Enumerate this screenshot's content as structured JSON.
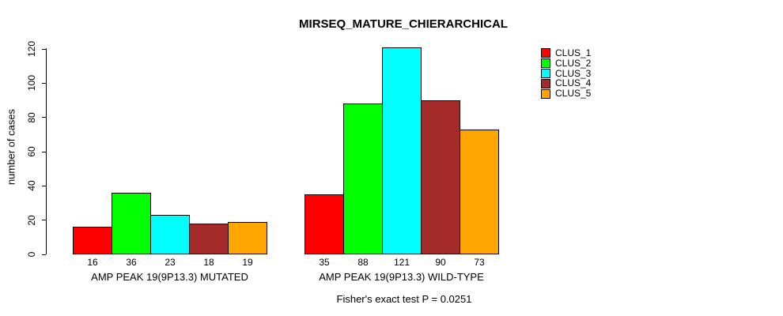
{
  "title": "MIRSEQ_MATURE_CHIERARCHICAL",
  "footer": "Fisher's exact test P = 0.0251",
  "y_axis": {
    "label": "number of cases",
    "ticks": [
      0,
      20,
      40,
      60,
      80,
      100,
      120
    ]
  },
  "legend": {
    "entries": [
      {
        "label": "CLUS_1",
        "color": "#FF0000"
      },
      {
        "label": "CLUS_2",
        "color": "#00FF00"
      },
      {
        "label": "CLUS_3",
        "color": "#00FFFF"
      },
      {
        "label": "CLUS_4",
        "color": "#A52A2A"
      },
      {
        "label": "CLUS_5",
        "color": "#FFA500"
      }
    ]
  },
  "colors": {
    "background": "#FFFFFF",
    "axis": "#000000",
    "text": "#000000",
    "bar_border": "#000000"
  },
  "chart_data": {
    "type": "bar",
    "title": "MIRSEQ_MATURE_CHIERARCHICAL",
    "xlabel": "",
    "ylabel": "number of cases",
    "ylim": [
      0,
      120
    ],
    "yticks": [
      0,
      20,
      40,
      60,
      80,
      100,
      120
    ],
    "grid": false,
    "legend_position": "right-outside-top",
    "bar_value_labels": true,
    "annotation": "Fisher's exact test P = 0.0251",
    "categories": [
      "AMP PEAK 19(9P13.3) MUTATED",
      "AMP PEAK 19(9P13.3) WILD-TYPE"
    ],
    "series": [
      {
        "name": "CLUS_1",
        "color": "#FF0000",
        "values": [
          16,
          35
        ]
      },
      {
        "name": "CLUS_2",
        "color": "#00FF00",
        "values": [
          36,
          88
        ]
      },
      {
        "name": "CLUS_3",
        "color": "#00FFFF",
        "values": [
          23,
          121
        ]
      },
      {
        "name": "CLUS_4",
        "color": "#A52A2A",
        "values": [
          18,
          90
        ]
      },
      {
        "name": "CLUS_5",
        "color": "#FFA500",
        "values": [
          19,
          73
        ]
      }
    ]
  }
}
